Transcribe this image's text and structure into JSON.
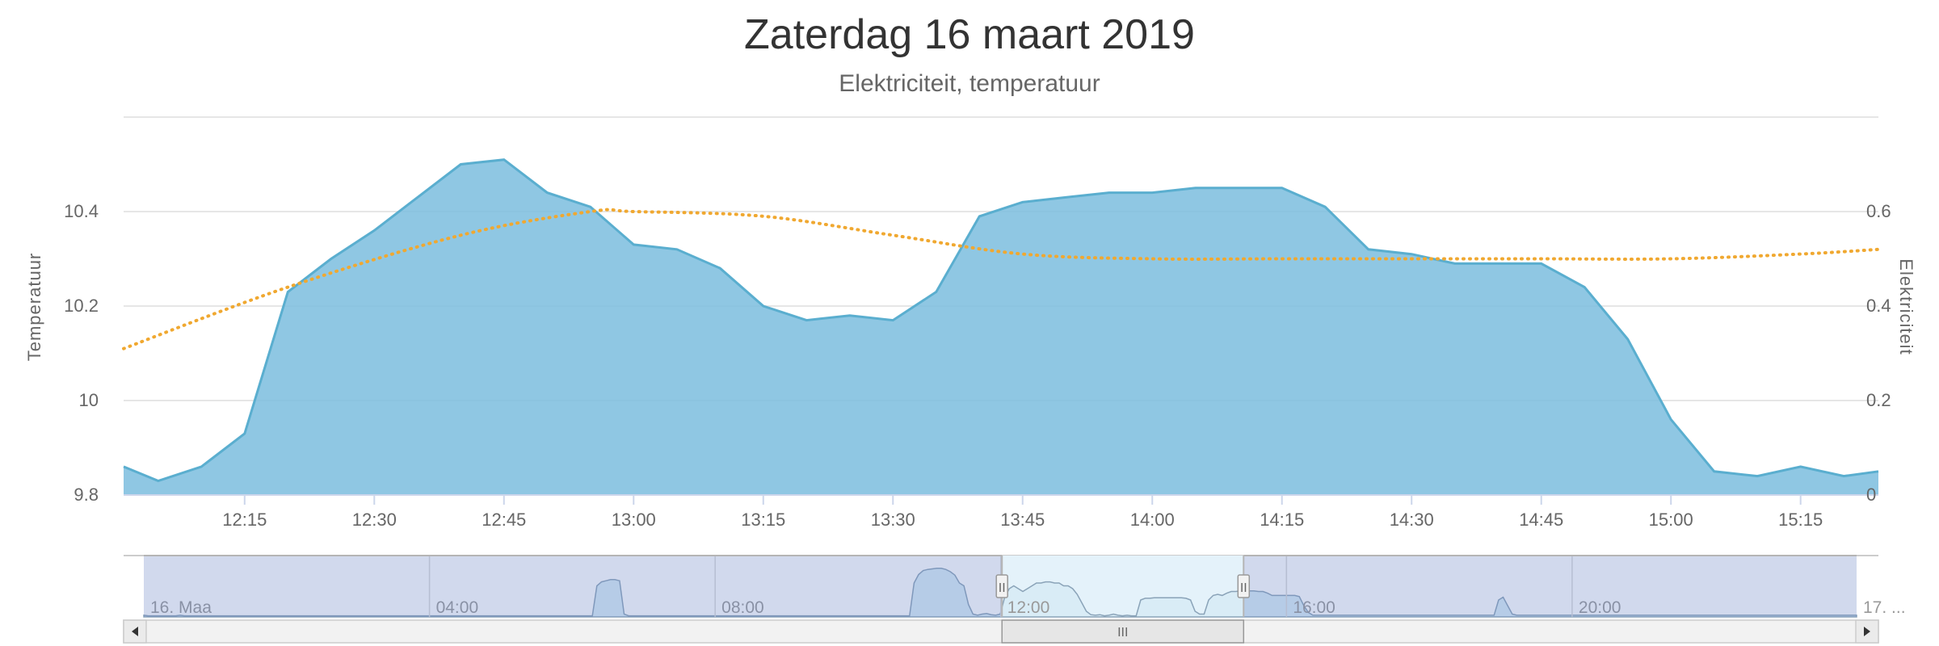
{
  "chart_data": {
    "type": "area",
    "title": "Zaterdag 16 maart 2019",
    "subtitle": "Elektriciteit, temperatuur",
    "x_tick_labels": [
      "12:15",
      "12:30",
      "12:45",
      "13:00",
      "13:15",
      "13:30",
      "13:45",
      "14:00",
      "14:15",
      "14:30",
      "14:45",
      "15:00",
      "15:15"
    ],
    "x_range": [
      "12:01",
      "15:24"
    ],
    "y_axes": {
      "left": {
        "title": "Temperatuur",
        "ticks": [
          9.8,
          10,
          10.2,
          10.4
        ],
        "range": [
          9.8,
          10.6
        ]
      },
      "right": {
        "title": "Elektriciteit",
        "ticks": [
          0,
          0.2,
          0.4,
          0.6
        ],
        "range": [
          0,
          0.8
        ]
      }
    },
    "grid": true,
    "series": [
      {
        "kind": "area",
        "axis": "right",
        "color": "#7fbfdf",
        "line_color": "#5aaecf",
        "x": [
          "12:01",
          "12:05",
          "12:10",
          "12:15",
          "12:20",
          "12:25",
          "12:30",
          "12:35",
          "12:40",
          "12:45",
          "12:50",
          "12:55",
          "13:00",
          "13:05",
          "13:10",
          "13:15",
          "13:20",
          "13:25",
          "13:30",
          "13:35",
          "13:40",
          "13:45",
          "13:50",
          "13:55",
          "14:00",
          "14:05",
          "14:10",
          "14:15",
          "14:20",
          "14:25",
          "14:30",
          "14:35",
          "14:40",
          "14:45",
          "14:50",
          "14:55",
          "15:00",
          "15:05",
          "15:10",
          "15:15",
          "15:20",
          "15:24"
        ],
        "values": [
          0.06,
          0.03,
          0.06,
          0.13,
          0.43,
          0.5,
          0.56,
          0.63,
          0.7,
          0.71,
          0.64,
          0.61,
          0.53,
          0.52,
          0.48,
          0.4,
          0.37,
          0.38,
          0.37,
          0.43,
          0.59,
          0.62,
          0.63,
          0.64,
          0.64,
          0.65,
          0.65,
          0.65,
          0.61,
          0.52,
          0.51,
          0.49,
          0.49,
          0.49,
          0.44,
          0.33,
          0.16,
          0.05,
          0.04,
          0.06,
          0.04,
          0.05
        ]
      },
      {
        "kind": "spline-dotted",
        "axis": "left",
        "color": "#f0a830",
        "x": [
          "12:01",
          "12:20",
          "12:40",
          "12:55",
          "13:00",
          "13:15",
          "13:30",
          "13:45",
          "14:00",
          "14:15",
          "14:30",
          "14:45",
          "15:00",
          "15:15",
          "15:24"
        ],
        "values": [
          10.11,
          10.24,
          10.35,
          10.4,
          10.4,
          10.39,
          10.35,
          10.31,
          10.3,
          10.3,
          10.3,
          10.3,
          10.3,
          10.31,
          10.32
        ]
      }
    ],
    "navigator": {
      "x_labels": [
        "16. Maa",
        "04:00",
        "08:00",
        "12:00",
        "16:00",
        "20:00",
        "17. ..."
      ],
      "series_color": "#a7c3db",
      "range_start": "00:00",
      "range_end": "23:59",
      "selected_from": "12:01",
      "selected_to": "15:24",
      "values": [
        0.03,
        0.02,
        0.02,
        0.02,
        0.02,
        0.02,
        0.02,
        0.02,
        0.03,
        0.02,
        0.02,
        0.02,
        0.02,
        0.02,
        0.02,
        0.02,
        0.02,
        0.02,
        0.02,
        0.02,
        0.02,
        0.02,
        0.02,
        0.02,
        0.02,
        0.02,
        0.02,
        0.02,
        0.02,
        0.02,
        0.02,
        0.02,
        0.02,
        0.02,
        0.02,
        0.02,
        0.02,
        0.02,
        0.02,
        0.02,
        0.02,
        0.02,
        0.02,
        0.02,
        0.02,
        0.02,
        0.02,
        0.02,
        0.02,
        0.02,
        0.02,
        0.02,
        0.02,
        0.02,
        0.02,
        0.02,
        0.02,
        0.02,
        0.02,
        0.02,
        0.02,
        0.02,
        0.02,
        0.02,
        0.02,
        0.02,
        0.02,
        0.02,
        0.02,
        0.02,
        0.02,
        0.02,
        0.02,
        0.02,
        0.02,
        0.02,
        0.02,
        0.02,
        0.02,
        0.02,
        0.02,
        0.02,
        0.02,
        0.02,
        0.02,
        0.02,
        0.02,
        0.02,
        0.02,
        0.02,
        0.02,
        0.02,
        0.02,
        0.02,
        0.02,
        0.02,
        0.02,
        0.02,
        0.02,
        0.02,
        0.55,
        0.62,
        0.64,
        0.66,
        0.66,
        0.64,
        0.05,
        0.02,
        0.02,
        0.02,
        0.02,
        0.02,
        0.02,
        0.02,
        0.02,
        0.02,
        0.02,
        0.02,
        0.02,
        0.02,
        0.02,
        0.02,
        0.02,
        0.02,
        0.02,
        0.02,
        0.02,
        0.02,
        0.02,
        0.02,
        0.02,
        0.02,
        0.02,
        0.02,
        0.02,
        0.02,
        0.02,
        0.02,
        0.02,
        0.02,
        0.02,
        0.02,
        0.02,
        0.02,
        0.02,
        0.02,
        0.02,
        0.02,
        0.02,
        0.02,
        0.02,
        0.02,
        0.02,
        0.02,
        0.02,
        0.02,
        0.02,
        0.02,
        0.02,
        0.02,
        0.02,
        0.02,
        0.02,
        0.02,
        0.02,
        0.02,
        0.02,
        0.02,
        0.02,
        0.02,
        0.6,
        0.75,
        0.82,
        0.84,
        0.85,
        0.86,
        0.86,
        0.84,
        0.8,
        0.74,
        0.6,
        0.55,
        0.22,
        0.05,
        0.03,
        0.05,
        0.06,
        0.04,
        0.03,
        0.05,
        0.35,
        0.5,
        0.55,
        0.5,
        0.45,
        0.5,
        0.55,
        0.6,
        0.6,
        0.62,
        0.62,
        0.6,
        0.6,
        0.55,
        0.55,
        0.5,
        0.4,
        0.25,
        0.1,
        0.04,
        0.03,
        0.04,
        0.02,
        0.03,
        0.05,
        0.03,
        0.02,
        0.03,
        0.02,
        0.02,
        0.3,
        0.33,
        0.33,
        0.34,
        0.34,
        0.34,
        0.34,
        0.34,
        0.34,
        0.34,
        0.33,
        0.3,
        0.1,
        0.05,
        0.05,
        0.3,
        0.38,
        0.4,
        0.38,
        0.42,
        0.45,
        0.45,
        0.46,
        0.46,
        0.46,
        0.46,
        0.45,
        0.45,
        0.42,
        0.38,
        0.38,
        0.38,
        0.38,
        0.38,
        0.38,
        0.36,
        0.2,
        0.08,
        0.03,
        0.03,
        0.03,
        0.03,
        0.03,
        0.03,
        0.03,
        0.03,
        0.03,
        0.03,
        0.03,
        0.03,
        0.03,
        0.03,
        0.03,
        0.03,
        0.03,
        0.03,
        0.03,
        0.03,
        0.03,
        0.03,
        0.03,
        0.03,
        0.03,
        0.03,
        0.03,
        0.03,
        0.03,
        0.03,
        0.03,
        0.03,
        0.03,
        0.03,
        0.03,
        0.03,
        0.03,
        0.03,
        0.03,
        0.03,
        0.03,
        0.3,
        0.35,
        0.2,
        0.05,
        0.03,
        0.03,
        0.03,
        0.03,
        0.03,
        0.03,
        0.03,
        0.03,
        0.03,
        0.03,
        0.03,
        0.03,
        0.03,
        0.03,
        0.03,
        0.03,
        0.03,
        0.03,
        0.03,
        0.03,
        0.03,
        0.03,
        0.03,
        0.03,
        0.03,
        0.03,
        0.03,
        0.03,
        0.03,
        0.03,
        0.03,
        0.03,
        0.03,
        0.03,
        0.03,
        0.03,
        0.03,
        0.03,
        0.03,
        0.03,
        0.03,
        0.03,
        0.03,
        0.03,
        0.03,
        0.03,
        0.03,
        0.03,
        0.03,
        0.03,
        0.03,
        0.03,
        0.03,
        0.03,
        0.03,
        0.03,
        0.03,
        0.03,
        0.03,
        0.03,
        0.03,
        0.03,
        0.03,
        0.03,
        0.03,
        0.03,
        0.03,
        0.03,
        0.03,
        0.03,
        0.03,
        0.03,
        0.03,
        0.03,
        0.03,
        0.03
      ],
      "scrollbar_grip": "III",
      "handle_glyph": "II"
    }
  }
}
